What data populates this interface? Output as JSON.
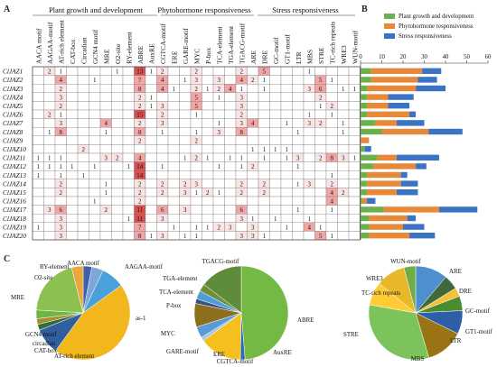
{
  "figure": {
    "panel_labels": [
      "A",
      "B",
      "C"
    ],
    "group_headers": [
      "Plant growth and development",
      "Phytohormone responsiveness",
      "Stress responsiveness"
    ],
    "elements": [
      "AACA motif",
      "AAGAA-motif",
      "AT-rich element",
      "CAT-box",
      "Circadian",
      "GCN4 motif",
      "MRE",
      "O2-site",
      "RY-element",
      "ABRE",
      "AuxRE",
      "CGTCA-motif",
      "ERE",
      "GARE-motif",
      "MYC",
      "P-box",
      "TCA-element",
      "TGA-element",
      "TGACG-motif",
      "ARE",
      "DRE",
      "GC-motif",
      "GT1-motif",
      "LTR",
      "MBS",
      "STRE",
      "TC-rich repeats",
      "WRE3",
      "WUN-motif"
    ],
    "genes": [
      "ClJAZ1",
      "ClJAZ2",
      "ClJAZ3",
      "ClJAZ4",
      "ClJAZ5",
      "ClJAZ6",
      "ClJAZ7",
      "ClJAZ8",
      "ClJAZ9",
      "ClJAZ10",
      "ClJAZ11",
      "ClJAZ12",
      "ClJAZ13",
      "ClJAZ14",
      "ClJAZ15",
      "ClJAZ16",
      "ClJAZ17",
      "ClJAZ18",
      "ClJAZ19",
      "ClJAZ20"
    ],
    "matrix": [
      [
        "",
        "2",
        "1",
        "",
        "",
        "",
        "",
        "1",
        "",
        "13",
        "1",
        "2",
        "",
        "",
        "2",
        "",
        "",
        "",
        "2",
        "",
        "5",
        "",
        "",
        "",
        "1",
        "",
        "",
        "",
        ""
      ],
      [
        "",
        "",
        "4",
        "",
        "",
        "1",
        "",
        "",
        "",
        "7",
        "",
        "4",
        "",
        "1",
        "3",
        "",
        "3",
        "",
        "4",
        "2",
        "1",
        "",
        "",
        "",
        "",
        "5",
        "1",
        "",
        ""
      ],
      [
        "",
        "",
        "2",
        "",
        "",
        "",
        "",
        "",
        "",
        "8",
        "",
        "4",
        "1",
        "",
        "2",
        "1",
        "2",
        "4",
        "1",
        "",
        "1",
        "",
        "",
        "",
        "3",
        "6",
        "",
        "1",
        "1"
      ],
      [
        "",
        "",
        "3",
        "",
        "",
        "",
        "",
        "",
        "",
        "2",
        "1",
        "",
        "",
        "",
        "5",
        "",
        "1",
        "",
        "3",
        "",
        "",
        "",
        "",
        "",
        "",
        "2",
        "",
        "",
        ""
      ],
      [
        "",
        "",
        "2",
        "",
        "",
        "",
        "",
        "",
        "",
        "2",
        "1",
        "3",
        "",
        "",
        "5",
        "",
        "",
        "",
        "3",
        "",
        "",
        "",
        "",
        "",
        "",
        "1",
        "2",
        "",
        ""
      ],
      [
        "",
        "2",
        "1",
        "",
        "",
        "",
        "",
        "",
        "",
        "15",
        "",
        "2",
        "",
        "",
        "1",
        "",
        "",
        "",
        "2",
        "",
        "",
        "",
        "",
        "",
        "1",
        "",
        "1",
        "",
        ""
      ],
      [
        "",
        "",
        "3",
        "",
        "",
        "",
        "4",
        "",
        "",
        "2",
        "",
        "3",
        "",
        "",
        "",
        "",
        "1",
        "",
        "3",
        "4",
        "",
        "",
        "1",
        "",
        "3",
        "2",
        "",
        "1",
        ""
      ],
      [
        "",
        "1",
        "8",
        "",
        "",
        "",
        "1",
        "",
        "",
        "8",
        "",
        "1",
        "",
        "",
        "1",
        "",
        "3",
        "",
        "8",
        "",
        "",
        "",
        "",
        "1",
        "",
        "",
        "",
        "1",
        ""
      ],
      [
        "",
        "",
        "",
        "",
        "",
        "",
        "",
        "",
        "",
        "2",
        "",
        "",
        "",
        "",
        "2",
        "",
        "",
        "",
        "",
        "",
        "",
        "",
        "",
        "",
        "",
        "",
        "",
        "",
        ""
      ],
      [
        "",
        "",
        "",
        "",
        "2",
        "",
        "",
        "",
        "",
        "",
        "",
        "",
        "",
        "",
        "",
        "",
        "",
        "",
        "",
        "1",
        "1",
        "1",
        "1",
        "",
        "",
        "",
        "",
        "",
        ""
      ],
      [
        "1",
        "1",
        "1",
        "",
        "",
        "",
        "3",
        "2",
        "",
        "4",
        "",
        "",
        "",
        "1",
        "2",
        "1",
        "",
        "1",
        "1",
        "",
        "1",
        "",
        "1",
        "3",
        "",
        "2",
        "8",
        "3",
        "1"
      ],
      [
        "1",
        "1",
        "1",
        "1",
        "",
        "1",
        "",
        "",
        "1",
        "14",
        "",
        "1",
        "",
        "",
        "",
        "",
        "1",
        "",
        "1",
        "2",
        "",
        "",
        "",
        "1",
        "",
        "",
        "",
        "",
        ""
      ],
      [
        "1",
        "",
        "1",
        "",
        "1",
        "",
        "",
        "",
        "",
        "14",
        "",
        "",
        "",
        "",
        "",
        "",
        "",
        "",
        "",
        "",
        "",
        "",
        "",
        "",
        "",
        "",
        "1",
        "",
        ""
      ],
      [
        "",
        "",
        "2",
        "",
        "",
        "",
        "1",
        "",
        "",
        "2",
        "",
        "2",
        "",
        "2",
        "3",
        "",
        "",
        "",
        "2",
        "",
        "2",
        "",
        "",
        "1",
        "3",
        "",
        "2",
        "",
        ""
      ],
      [
        "",
        "",
        "2",
        "",
        "",
        "",
        "1",
        "",
        "",
        "2",
        "",
        "2",
        "",
        "3",
        "1",
        "2",
        "1",
        "",
        "2",
        "",
        "2",
        "",
        "",
        "",
        "",
        "",
        "4",
        "2",
        ""
      ],
      [
        "",
        "",
        "",
        "",
        "",
        "1",
        "",
        "",
        "",
        "2",
        "",
        "",
        "",
        "",
        "",
        "",
        "",
        "",
        "",
        "",
        "",
        "",
        "",
        "",
        "",
        "",
        "4",
        "",
        ""
      ],
      [
        "",
        "3",
        "6",
        "",
        "",
        "",
        "2",
        "",
        "",
        "11",
        "",
        "6",
        "",
        "3",
        "",
        "",
        "",
        "",
        "6",
        "",
        "",
        "",
        "",
        "1",
        "",
        "",
        "1",
        "",
        ""
      ],
      [
        "",
        "",
        "3",
        "",
        "",
        "",
        "",
        "",
        "1",
        "11",
        "",
        "3",
        "",
        "",
        "",
        "",
        "",
        "",
        "3",
        "1",
        "",
        "1",
        "",
        "",
        "1",
        "",
        "",
        "",
        ""
      ],
      [
        "1",
        "",
        "3",
        "",
        "",
        "",
        "",
        "",
        "",
        "7",
        "",
        "",
        "1",
        "",
        "1",
        "1",
        "2",
        "3",
        "",
        "3",
        "",
        "",
        "1",
        "",
        "4",
        "1",
        "",
        "",
        ""
      ],
      [
        "",
        "",
        "3",
        "",
        "",
        "",
        "",
        "",
        "",
        "8",
        "1",
        "3",
        "",
        "1",
        "1",
        "",
        "",
        "",
        "3",
        "3",
        "1",
        "",
        "",
        "",
        "",
        "5",
        "1",
        "",
        ""
      ]
    ],
    "legend_items": [
      "Plant growth and development",
      "Phytohormone responsiveness",
      "Stress responsiveness"
    ],
    "pie_labels": {
      "pie1": [
        "RY-element",
        "AACA motif",
        "O2-site",
        "AAGAA-motif",
        "MRE",
        "as-1",
        "GCN4 motif",
        "circadian",
        "CAT-box",
        "AT-rich element"
      ],
      "pie2": [
        "TGACG-motif",
        "TGA-element",
        "TCA-element",
        "P-box",
        "MYC",
        "ABRE",
        "GARE-motif",
        "ERE",
        "CGTCA-motif",
        "AuxRE"
      ],
      "pie3": [
        "WRE3",
        "WUN-motif",
        "ARE",
        "TC-rich repeats",
        "DRE",
        "GC-motif",
        "GT1-motif",
        "STRE",
        "LTR",
        "MBS"
      ]
    },
    "colors": {
      "plant": "#6ab04c",
      "phyto": "#e8893a",
      "stress": "#3a73c4",
      "heat_low": "#fbe4e4",
      "heat_mid": "#f2a5a5",
      "heat_high": "#d84f4f"
    }
  },
  "chart_data": [
    {
      "type": "bar",
      "title": "",
      "xlim": [
        0,
        60
      ],
      "xticks": [
        0,
        10,
        20,
        30,
        40,
        50,
        60
      ],
      "categories": [
        "ClJAZ1",
        "ClJAZ2",
        "ClJAZ3",
        "ClJAZ4",
        "ClJAZ5",
        "ClJAZ6",
        "ClJAZ7",
        "ClJAZ8",
        "ClJAZ9",
        "ClJAZ10",
        "ClJAZ11",
        "ClJAZ12",
        "ClJAZ13",
        "ClJAZ14",
        "ClJAZ15",
        "ClJAZ16",
        "ClJAZ17",
        "ClJAZ18",
        "ClJAZ19",
        "ClJAZ20"
      ],
      "stacked": true,
      "orientation": "horizontal",
      "series": [
        {
          "name": "Plant growth and development",
          "values": [
            5,
            5,
            3,
            3,
            3,
            3,
            7,
            10,
            0,
            2,
            8,
            6,
            3,
            3,
            3,
            1,
            11,
            4,
            4,
            4
          ]
        },
        {
          "name": "Phytohormone responsiveness",
          "values": [
            24,
            22,
            23,
            10,
            10,
            20,
            10,
            22,
            4,
            0,
            9,
            20,
            16,
            16,
            14,
            2,
            26,
            18,
            16,
            19
          ]
        },
        {
          "name": "Stress responsiveness",
          "values": [
            9,
            9,
            14,
            12,
            10,
            3,
            13,
            16,
            0,
            3,
            20,
            5,
            3,
            8,
            10,
            4,
            18,
            4,
            10,
            12
          ]
        }
      ],
      "legend": "top"
    },
    {
      "type": "pie",
      "labels": [
        "RY-element",
        "AACA motif",
        "AAGAA-motif",
        "as-1",
        "AT-rich element",
        "CAT-box",
        "circadian",
        "GCN4 motif",
        "MRE",
        "O2-site"
      ],
      "values": [
        3,
        4,
        8,
        45,
        9,
        2,
        2,
        3,
        20,
        4
      ]
    },
    {
      "type": "pie",
      "labels": [
        "ABRE",
        "AuxRE",
        "CGTCA-motif",
        "ERE",
        "GARE-motif",
        "MYC",
        "P-box",
        "TCA-element",
        "TGA-element",
        "TGACG-motif"
      ],
      "values": [
        150,
        5,
        45,
        4,
        12,
        25,
        5,
        9,
        8,
        45
      ]
    },
    {
      "type": "pie",
      "labels": [
        "ARE",
        "DRE",
        "GC-motif",
        "GT1-motif",
        "LTR",
        "MBS",
        "STRE",
        "TC-rich repeats",
        "WRE3",
        "WUN-motif"
      ],
      "values": [
        11,
        5,
        3,
        5,
        8,
        13,
        32,
        8,
        10,
        4
      ]
    }
  ]
}
